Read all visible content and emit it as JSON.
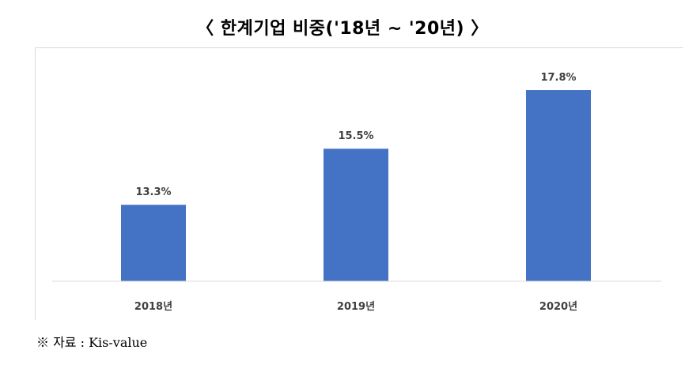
{
  "title": "〈 한계기업 비중('18년 ~ '20년) 〉",
  "source": "※ 자료 : Kis-value",
  "chart_data": {
    "type": "bar",
    "categories": [
      "2018년",
      "2019년",
      "2020년"
    ],
    "values": [
      13.3,
      15.5,
      17.8
    ],
    "value_labels": [
      "13.3%",
      "15.5%",
      "17.8%"
    ],
    "ylim": [
      10.3,
      18.7
    ],
    "xlabel": "",
    "ylabel": "",
    "grid": false,
    "bar_color": "#4472c4"
  }
}
